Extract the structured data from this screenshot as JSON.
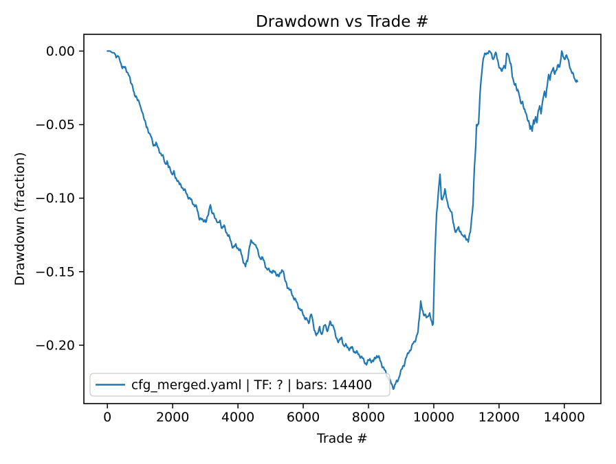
{
  "chart_data": {
    "type": "line",
    "title": "Drawdown vs Trade #",
    "xlabel": "Trade #",
    "ylabel": "Drawdown (fraction)",
    "legend_label": "cfg_merged.yaml | TF: ? | bars: 14400",
    "legend_position": "lower left",
    "line_color": "#1f77b4",
    "axis_color": "#000000",
    "legend_border_color": "#cccccc",
    "grid": false,
    "xlim": [
      -720,
      15120
    ],
    "ylim": [
      -0.2397,
      0.0114
    ],
    "x_ticks": [
      0,
      2000,
      4000,
      6000,
      8000,
      10000,
      12000,
      14000
    ],
    "x_tick_labels": [
      "0",
      "2000",
      "4000",
      "6000",
      "8000",
      "10000",
      "12000",
      "14000"
    ],
    "y_ticks": [
      0.0,
      -0.05,
      -0.1,
      -0.15,
      -0.2
    ],
    "y_tick_labels": [
      "0.00",
      "−0.05",
      "−0.10",
      "−0.15",
      "−0.20"
    ],
    "points": [
      [
        0,
        0
      ],
      [
        80,
        0
      ],
      [
        143,
        -0.001
      ],
      [
        206,
        -0.0012
      ],
      [
        249,
        -0.0026
      ],
      [
        270,
        -0.0045
      ],
      [
        312,
        -0.0031
      ],
      [
        354,
        -0.0045
      ],
      [
        396,
        -0.0073
      ],
      [
        459,
        -0.011
      ],
      [
        522,
        -0.0115
      ],
      [
        565,
        -0.0119
      ],
      [
        607,
        -0.0138
      ],
      [
        649,
        -0.0157
      ],
      [
        712,
        -0.0213
      ],
      [
        775,
        -0.0232
      ],
      [
        838,
        -0.0311
      ],
      [
        902,
        -0.032
      ],
      [
        944,
        -0.0325
      ],
      [
        986,
        -0.0353
      ],
      [
        1028,
        -0.0404
      ],
      [
        1070,
        -0.0414
      ],
      [
        1133,
        -0.0456
      ],
      [
        1196,
        -0.0521
      ],
      [
        1260,
        -0.0544
      ],
      [
        1323,
        -0.0568
      ],
      [
        1365,
        -0.061
      ],
      [
        1407,
        -0.0642
      ],
      [
        1449,
        -0.0633
      ],
      [
        1491,
        -0.0624
      ],
      [
        1555,
        -0.0666
      ],
      [
        1639,
        -0.0694
      ],
      [
        1723,
        -0.0731
      ],
      [
        1765,
        -0.0764
      ],
      [
        1828,
        -0.075
      ],
      [
        1870,
        -0.0792
      ],
      [
        1934,
        -0.0801
      ],
      [
        1976,
        -0.0834
      ],
      [
        2039,
        -0.0829
      ],
      [
        2081,
        -0.0862
      ],
      [
        2144,
        -0.0871
      ],
      [
        2208,
        -0.0908
      ],
      [
        2292,
        -0.0922
      ],
      [
        2355,
        -0.0946
      ],
      [
        2460,
        -0.0983
      ],
      [
        2565,
        -0.1016
      ],
      [
        2671,
        -0.1048
      ],
      [
        2734,
        -0.1067
      ],
      [
        2818,
        -0.1132
      ],
      [
        2881,
        -0.1146
      ],
      [
        2923,
        -0.1156
      ],
      [
        2987,
        -0.1146
      ],
      [
        3029,
        -0.116
      ],
      [
        3092,
        -0.1114
      ],
      [
        3155,
        -0.103
      ],
      [
        3197,
        -0.11
      ],
      [
        3282,
        -0.1123
      ],
      [
        3345,
        -0.1146
      ],
      [
        3387,
        -0.1179
      ],
      [
        3450,
        -0.1156
      ],
      [
        3513,
        -0.1202
      ],
      [
        3577,
        -0.1193
      ],
      [
        3640,
        -0.1226
      ],
      [
        3724,
        -0.1263
      ],
      [
        3787,
        -0.13
      ],
      [
        3850,
        -0.1333
      ],
      [
        3935,
        -0.1324
      ],
      [
        4019,
        -0.1342
      ],
      [
        4082,
        -0.1366
      ],
      [
        4145,
        -0.1412
      ],
      [
        4230,
        -0.1464
      ],
      [
        4293,
        -0.1426
      ],
      [
        4356,
        -0.1319
      ],
      [
        4398,
        -0.1296
      ],
      [
        4461,
        -0.131
      ],
      [
        4504,
        -0.13
      ],
      [
        4567,
        -0.1333
      ],
      [
        4609,
        -0.1366
      ],
      [
        4672,
        -0.1403
      ],
      [
        4756,
        -0.1412
      ],
      [
        4820,
        -0.144
      ],
      [
        4883,
        -0.1482
      ],
      [
        4946,
        -0.1492
      ],
      [
        5009,
        -0.1496
      ],
      [
        5072,
        -0.1501
      ],
      [
        5136,
        -0.1506
      ],
      [
        5220,
        -0.152
      ],
      [
        5262,
        -0.1538
      ],
      [
        5304,
        -0.151
      ],
      [
        5346,
        -0.1487
      ],
      [
        5388,
        -0.1487
      ],
      [
        5431,
        -0.1557
      ],
      [
        5473,
        -0.1576
      ],
      [
        5515,
        -0.1599
      ],
      [
        5557,
        -0.1613
      ],
      [
        5620,
        -0.1636
      ],
      [
        5683,
        -0.1664
      ],
      [
        5747,
        -0.1688
      ],
      [
        5810,
        -0.1716
      ],
      [
        5873,
        -0.1744
      ],
      [
        5936,
        -0.1767
      ],
      [
        5999,
        -0.179
      ],
      [
        6063,
        -0.1814
      ],
      [
        6126,
        -0.1832
      ],
      [
        6168,
        -0.1856
      ],
      [
        6210,
        -0.18
      ],
      [
        6252,
        -0.1786
      ],
      [
        6295,
        -0.1846
      ],
      [
        6337,
        -0.1893
      ],
      [
        6400,
        -0.1921
      ],
      [
        6442,
        -0.193
      ],
      [
        6505,
        -0.1879
      ],
      [
        6569,
        -0.1926
      ],
      [
        6632,
        -0.1884
      ],
      [
        6674,
        -0.1856
      ],
      [
        6716,
        -0.1884
      ],
      [
        6758,
        -0.1902
      ],
      [
        6821,
        -0.1846
      ],
      [
        6885,
        -0.1856
      ],
      [
        6927,
        -0.187
      ],
      [
        6990,
        -0.194
      ],
      [
        7053,
        -0.1963
      ],
      [
        7095,
        -0.1972
      ],
      [
        7137,
        -0.1963
      ],
      [
        7180,
        -0.1954
      ],
      [
        7243,
        -0.2001
      ],
      [
        7306,
        -0.2005
      ],
      [
        7369,
        -0.2015
      ],
      [
        7432,
        -0.2024
      ],
      [
        7496,
        -0.2019
      ],
      [
        7559,
        -0.2038
      ],
      [
        7601,
        -0.2047
      ],
      [
        7664,
        -0.2056
      ],
      [
        7727,
        -0.2066
      ],
      [
        7791,
        -0.2084
      ],
      [
        7854,
        -0.2103
      ],
      [
        7938,
        -0.2127
      ],
      [
        8001,
        -0.2108
      ],
      [
        8043,
        -0.2094
      ],
      [
        8106,
        -0.2108
      ],
      [
        8149,
        -0.2112
      ],
      [
        8212,
        -0.2084
      ],
      [
        8254,
        -0.207
      ],
      [
        8296,
        -0.208
      ],
      [
        8338,
        -0.2094
      ],
      [
        8422,
        -0.2136
      ],
      [
        8507,
        -0.2178
      ],
      [
        8591,
        -0.2215
      ],
      [
        8675,
        -0.2252
      ],
      [
        8738,
        -0.2276
      ],
      [
        8780,
        -0.229
      ],
      [
        8823,
        -0.2266
      ],
      [
        8886,
        -0.2243
      ],
      [
        8928,
        -0.222
      ],
      [
        8970,
        -0.2192
      ],
      [
        9012,
        -0.2173
      ],
      [
        9054,
        -0.2145
      ],
      [
        9096,
        -0.2127
      ],
      [
        9139,
        -0.2094
      ],
      [
        9202,
        -0.2066
      ],
      [
        9244,
        -0.2038
      ],
      [
        9286,
        -0.2029
      ],
      [
        9328,
        -0.2015
      ],
      [
        9371,
        -0.1987
      ],
      [
        9413,
        -0.1972
      ],
      [
        9455,
        -0.1949
      ],
      [
        9518,
        -0.1916
      ],
      [
        9560,
        -0.1809
      ],
      [
        9602,
        -0.1697
      ],
      [
        9645,
        -0.1753
      ],
      [
        9687,
        -0.1804
      ],
      [
        9750,
        -0.179
      ],
      [
        9813,
        -0.1809
      ],
      [
        9876,
        -0.1795
      ],
      [
        9918,
        -0.1818
      ],
      [
        9961,
        -0.1856
      ],
      [
        9982,
        -0.1846
      ],
      [
        10003,
        -0.166
      ],
      [
        10024,
        -0.1473
      ],
      [
        10045,
        -0.1319
      ],
      [
        10087,
        -0.11
      ],
      [
        10129,
        -0.0983
      ],
      [
        10192,
        -0.0843
      ],
      [
        10234,
        -0.1006
      ],
      [
        10277,
        -0.0997
      ],
      [
        10340,
        -0.0946
      ],
      [
        10403,
        -0.102
      ],
      [
        10445,
        -0.1044
      ],
      [
        10487,
        -0.1076
      ],
      [
        10551,
        -0.1109
      ],
      [
        10614,
        -0.1179
      ],
      [
        10677,
        -0.124
      ],
      [
        10719,
        -0.1216
      ],
      [
        10761,
        -0.1198
      ],
      [
        10824,
        -0.123
      ],
      [
        10888,
        -0.1268
      ],
      [
        10951,
        -0.1249
      ],
      [
        11014,
        -0.1286
      ],
      [
        11056,
        -0.13
      ],
      [
        11119,
        -0.1216
      ],
      [
        11161,
        -0.1137
      ],
      [
        11204,
        -0.1044
      ],
      [
        11246,
        -0.0787
      ],
      [
        11288,
        -0.0633
      ],
      [
        11309,
        -0.0493
      ],
      [
        11372,
        -0.0507
      ],
      [
        11414,
        -0.0306
      ],
      [
        11456,
        -0.0166
      ],
      [
        11519,
        -0.0049
      ],
      [
        11583,
        -0.0021
      ],
      [
        11646,
        -0.0007
      ],
      [
        11709,
        0
      ],
      [
        11772,
        -0.0026
      ],
      [
        11835,
        -0.0054
      ],
      [
        11877,
        -0.0021
      ],
      [
        11919,
        -0.0026
      ],
      [
        11983,
        -0.0082
      ],
      [
        12025,
        -0.0119
      ],
      [
        12088,
        -0.0143
      ],
      [
        12151,
        -0.0087
      ],
      [
        12193,
        -0.0115
      ],
      [
        12235,
        -0.0031
      ],
      [
        12277,
        -0.0017
      ],
      [
        12320,
        -0.0054
      ],
      [
        12362,
        -0.0087
      ],
      [
        12404,
        -0.0176
      ],
      [
        12446,
        -0.0213
      ],
      [
        12509,
        -0.0222
      ],
      [
        12551,
        -0.0269
      ],
      [
        12615,
        -0.0292
      ],
      [
        12657,
        -0.0339
      ],
      [
        12720,
        -0.0353
      ],
      [
        12762,
        -0.04
      ],
      [
        12825,
        -0.0409
      ],
      [
        12867,
        -0.046
      ],
      [
        12909,
        -0.0488
      ],
      [
        12951,
        -0.0526
      ],
      [
        12972,
        -0.0507
      ],
      [
        13014,
        -0.053
      ],
      [
        13057,
        -0.0479
      ],
      [
        13078,
        -0.0498
      ],
      [
        13120,
        -0.0456
      ],
      [
        13162,
        -0.0474
      ],
      [
        13204,
        -0.04
      ],
      [
        13246,
        -0.0386
      ],
      [
        13288,
        -0.0423
      ],
      [
        13351,
        -0.0306
      ],
      [
        13393,
        -0.0283
      ],
      [
        13436,
        -0.032
      ],
      [
        13499,
        -0.018
      ],
      [
        13520,
        -0.0157
      ],
      [
        13562,
        -0.0194
      ],
      [
        13625,
        -0.0133
      ],
      [
        13667,
        -0.011
      ],
      [
        13709,
        -0.0152
      ],
      [
        13772,
        -0.0129
      ],
      [
        13815,
        -0.0087
      ],
      [
        13857,
        -0.0105
      ],
      [
        13920,
        -0.0012
      ],
      [
        13962,
        -0.0035
      ],
      [
        14004,
        -0.0054
      ],
      [
        14046,
        -0.0026
      ],
      [
        14088,
        -0.0045
      ],
      [
        14131,
        -0.0073
      ],
      [
        14173,
        -0.0105
      ],
      [
        14215,
        -0.0133
      ],
      [
        14257,
        -0.0157
      ],
      [
        14299,
        -0.018
      ],
      [
        14341,
        -0.0201
      ],
      [
        14383,
        -0.019
      ],
      [
        14400,
        -0.0213
      ]
    ]
  }
}
